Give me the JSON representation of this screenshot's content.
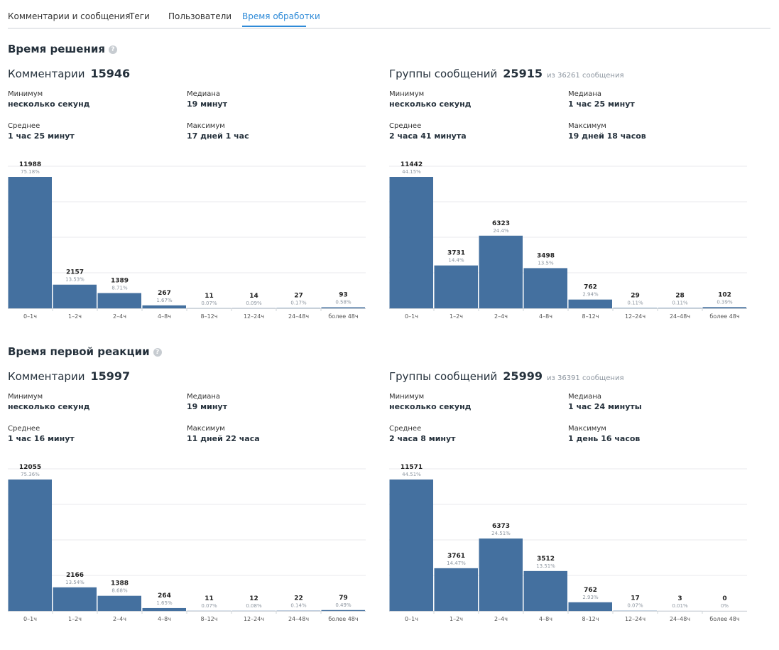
{
  "tabs": [
    {
      "label": "Комментарии и сообщения",
      "active": false
    },
    {
      "label": "Теги",
      "active": false
    },
    {
      "label": "Пользователи",
      "active": false
    },
    {
      "label": "Время обработки",
      "active": true
    }
  ],
  "colors": {
    "bar": "#44709f",
    "accent": "#2f8bd8",
    "grid": "#e8eaed"
  },
  "sections": [
    {
      "title": "Время решения",
      "help_icon": "question-icon",
      "panels": [
        {
          "label": "Комментарии",
          "count": "15946",
          "of_text": "",
          "stats": {
            "min_label": "Минимум",
            "min_value": "несколько секунд",
            "median_label": "Медиана",
            "median_value": "19 минут",
            "avg_label": "Среднее",
            "avg_value": "1 час 25 минут",
            "max_label": "Максимум",
            "max_value": "17 дней 1 час"
          },
          "chart_data": {
            "type": "bar",
            "categories": [
              "0–1ч",
              "1–2ч",
              "2–4ч",
              "4–8ч",
              "8–12ч",
              "12–24ч",
              "24–48ч",
              "более 48ч"
            ],
            "values": [
              11988,
              2157,
              1389,
              267,
              11,
              14,
              27,
              93
            ],
            "percents": [
              "75.18%",
              "13.53%",
              "8.71%",
              "1.67%",
              "0.07%",
              "0.09%",
              "0.17%",
              "0.58%"
            ]
          }
        },
        {
          "label": "Группы сообщений",
          "count": "25915",
          "of_text": "из 36261 сообщения",
          "stats": {
            "min_label": "Минимум",
            "min_value": "несколько секунд",
            "median_label": "Медиана",
            "median_value": "1 час 25 минут",
            "avg_label": "Среднее",
            "avg_value": "2 часа 41 минута",
            "max_label": "Максимум",
            "max_value": "19 дней 18 часов"
          },
          "chart_data": {
            "type": "bar",
            "categories": [
              "0–1ч",
              "1–2ч",
              "2–4ч",
              "4–8ч",
              "8–12ч",
              "12–24ч",
              "24–48ч",
              "более 48ч"
            ],
            "values": [
              11442,
              3731,
              6323,
              3498,
              762,
              29,
              28,
              102
            ],
            "percents": [
              "44.15%",
              "14.4%",
              "24.4%",
              "13.5%",
              "2.94%",
              "0.11%",
              "0.11%",
              "0.39%"
            ]
          }
        }
      ]
    },
    {
      "title": "Время первой реакции",
      "help_icon": "question-icon",
      "panels": [
        {
          "label": "Комментарии",
          "count": "15997",
          "of_text": "",
          "stats": {
            "min_label": "Минимум",
            "min_value": "несколько секунд",
            "median_label": "Медиана",
            "median_value": "19 минут",
            "avg_label": "Среднее",
            "avg_value": "1 час 16 минут",
            "max_label": "Максимум",
            "max_value": "11 дней 22 часа"
          },
          "chart_data": {
            "type": "bar",
            "categories": [
              "0–1ч",
              "1–2ч",
              "2–4ч",
              "4–8ч",
              "8–12ч",
              "12–24ч",
              "24–48ч",
              "более 48ч"
            ],
            "values": [
              12055,
              2166,
              1388,
              264,
              11,
              12,
              22,
              79
            ],
            "percents": [
              "75.36%",
              "13.54%",
              "8.68%",
              "1.65%",
              "0.07%",
              "0.08%",
              "0.14%",
              "0.49%"
            ]
          }
        },
        {
          "label": "Группы сообщений",
          "count": "25999",
          "of_text": "из 36391 сообщения",
          "stats": {
            "min_label": "Минимум",
            "min_value": "несколько секунд",
            "median_label": "Медиана",
            "median_value": "1 час 24 минуты",
            "avg_label": "Среднее",
            "avg_value": "2 часа 8 минут",
            "max_label": "Максимум",
            "max_value": "1 день 16 часов"
          },
          "chart_data": {
            "type": "bar",
            "categories": [
              "0–1ч",
              "1–2ч",
              "2–4ч",
              "4–8ч",
              "8–12ч",
              "12–24ч",
              "24–48ч",
              "более 48ч"
            ],
            "values": [
              11571,
              3761,
              6373,
              3512,
              762,
              17,
              3,
              0
            ],
            "percents": [
              "44.51%",
              "14.47%",
              "24.51%",
              "13.51%",
              "2.93%",
              "0.07%",
              "0.01%",
              "0%"
            ]
          }
        }
      ]
    }
  ]
}
